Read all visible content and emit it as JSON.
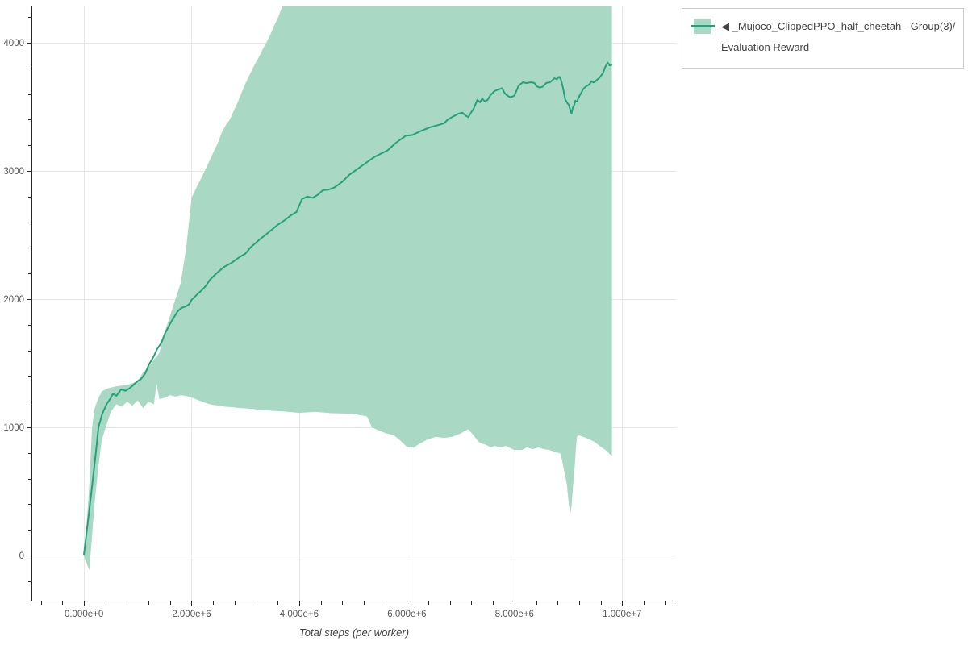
{
  "colors": {
    "line": "#26a17c",
    "band_fill": "#a9d9c5",
    "grid": "#e6e6e6",
    "axis_line": "#262626",
    "tick_label": "#555555",
    "axis_title": "#444444",
    "legend_border": "#cccccc",
    "background": "#ffffff"
  },
  "legend": {
    "position": "top-right",
    "items": [
      {
        "label": "◀ _Mujoco_ClippedPPO_half_cheetah - Group(3)/Evaluation Reward",
        "line_color": "#26a17c",
        "fill_color": "#a9d9c5"
      }
    ]
  },
  "chart_data": {
    "type": "line",
    "title": "",
    "xlabel": "Total steps (per worker)",
    "ylabel": "",
    "grid": true,
    "legend_position": "top-right",
    "x_axis": {
      "lim": [
        -960000,
        11000000
      ],
      "major_ticks": [
        0,
        2000000,
        4000000,
        6000000,
        8000000,
        10000000
      ],
      "tick_labels": [
        "0.000e+0",
        "2.000e+6",
        "4.000e+6",
        "6.000e+6",
        "8.000e+6",
        "1.000e+7"
      ],
      "minor_step": 400000
    },
    "y_axis": {
      "lim": [
        -352,
        4283
      ],
      "major_ticks": [
        0,
        1000,
        2000,
        3000,
        4000
      ],
      "tick_labels": [
        "0",
        "1000",
        "2000",
        "3000",
        "4000"
      ],
      "minor_step": 200
    },
    "series": [
      {
        "name": "Evaluation Reward (mean)",
        "kind": "line",
        "color": "#26a17c",
        "x": [
          0,
          70000,
          140000,
          210000,
          270000,
          340000,
          420000,
          500000,
          540000,
          600000,
          690000,
          770000,
          840000,
          910000,
          990000,
          1060000,
          1140000,
          1210000,
          1290000,
          1360000,
          1440000,
          1510000,
          1590000,
          1660000,
          1740000,
          1810000,
          1890000,
          1960000,
          2000000,
          2040000,
          2110000,
          2190000,
          2260000,
          2340000,
          2410000,
          2500000,
          2600000,
          2750000,
          2900000,
          3000000,
          3100000,
          3250000,
          3400000,
          3500000,
          3600000,
          3730000,
          3850000,
          3950000,
          4050000,
          4150000,
          4250000,
          4350000,
          4440000,
          4550000,
          4650000,
          4800000,
          4930000,
          5100000,
          5230000,
          5400000,
          5640000,
          5800000,
          5980000,
          6100000,
          6250000,
          6430000,
          6600000,
          6690000,
          6760000,
          6840000,
          6950000,
          7030000,
          7100000,
          7140000,
          7200000,
          7240000,
          7310000,
          7360000,
          7400000,
          7450000,
          7500000,
          7550000,
          7630000,
          7700000,
          7770000,
          7820000,
          7860000,
          7920000,
          7960000,
          8000000,
          8070000,
          8120000,
          8160000,
          8220000,
          8300000,
          8370000,
          8410000,
          8470000,
          8520000,
          8590000,
          8660000,
          8700000,
          8740000,
          8790000,
          8830000,
          8860000,
          8900000,
          8940000,
          8980000,
          9010000,
          9040000,
          9060000,
          9080000,
          9110000,
          9130000,
          9160000,
          9200000,
          9240000,
          9280000,
          9330000,
          9390000,
          9430000,
          9460000,
          9490000,
          9530000,
          9570000,
          9610000,
          9640000,
          9680000,
          9730000,
          9770000,
          9800000
        ],
        "y": [
          10,
          250,
          500,
          760,
          1000,
          1105,
          1180,
          1230,
          1264,
          1245,
          1296,
          1285,
          1302,
          1327,
          1358,
          1377,
          1421,
          1491,
          1547,
          1610,
          1660,
          1736,
          1799,
          1849,
          1905,
          1931,
          1943,
          1962,
          1995,
          2010,
          2040,
          2070,
          2100,
          2150,
          2180,
          2215,
          2250,
          2285,
          2330,
          2355,
          2405,
          2460,
          2510,
          2545,
          2580,
          2615,
          2655,
          2680,
          2780,
          2800,
          2790,
          2815,
          2850,
          2855,
          2870,
          2915,
          2970,
          3020,
          3060,
          3110,
          3160,
          3220,
          3275,
          3280,
          3310,
          3340,
          3360,
          3372,
          3400,
          3420,
          3445,
          3455,
          3430,
          3420,
          3460,
          3485,
          3555,
          3535,
          3565,
          3542,
          3555,
          3590,
          3623,
          3635,
          3645,
          3605,
          3590,
          3575,
          3580,
          3588,
          3660,
          3680,
          3692,
          3685,
          3692,
          3686,
          3660,
          3650,
          3656,
          3686,
          3692,
          3705,
          3723,
          3715,
          3736,
          3715,
          3650,
          3560,
          3530,
          3515,
          3470,
          3448,
          3490,
          3515,
          3548,
          3540,
          3580,
          3610,
          3640,
          3660,
          3675,
          3700,
          3690,
          3694,
          3710,
          3723,
          3745,
          3760,
          3805,
          3845,
          3822,
          3826
        ]
      },
      {
        "name": "Evaluation Reward (min/max band)",
        "kind": "band",
        "fill": "#a9d9c5",
        "x": [
          0,
          50000,
          100000,
          150000,
          200000,
          270000,
          330000,
          420000,
          500000,
          600000,
          700000,
          800000,
          900000,
          1000000,
          1100000,
          1200000,
          1300000,
          1350000,
          1400000,
          1500000,
          1600000,
          1700000,
          1800000,
          1900000,
          2000000,
          2100000,
          2200000,
          2300000,
          2400000,
          2500000,
          2560000,
          2640000,
          2710000,
          2860000,
          2940000,
          3010000,
          3090000,
          3160000,
          3240000,
          3310000,
          3390000,
          3460000,
          3540000,
          3610000,
          3700000,
          4000000,
          4300000,
          4600000,
          5000000,
          5260000,
          5350000,
          5500000,
          5640000,
          5760000,
          5890000,
          6010000,
          6130000,
          6240000,
          6390000,
          6540000,
          6690000,
          6840000,
          6990000,
          7140000,
          7240000,
          7330000,
          7390000,
          7480000,
          7560000,
          7630000,
          7740000,
          7840000,
          7990000,
          8140000,
          8230000,
          8340000,
          8440000,
          8540000,
          8640000,
          8740000,
          8830000,
          8860000,
          8910000,
          8970000,
          9010000,
          9040000,
          9060000,
          9090000,
          9120000,
          9140000,
          9160000,
          9190000,
          9280000,
          9390000,
          9490000,
          9580000,
          9690000,
          9790000,
          9810000
        ],
        "upper": [
          30,
          250,
          550,
          1000,
          1150,
          1230,
          1280,
          1300,
          1310,
          1320,
          1325,
          1330,
          1345,
          1360,
          1430,
          1470,
          1530,
          1550,
          1580,
          1740,
          1870,
          2000,
          2130,
          2400,
          2790,
          2880,
          2960,
          3050,
          3140,
          3230,
          3300,
          3360,
          3400,
          3540,
          3620,
          3690,
          3760,
          3820,
          3880,
          3940,
          4000,
          4060,
          4140,
          4200,
          4300,
          4400,
          4400,
          4400,
          4400,
          4400,
          4400,
          4400,
          4400,
          4400,
          4400,
          4400,
          4400,
          4400,
          4400,
          4400,
          4400,
          4400,
          4400,
          4400,
          4400,
          4400,
          4400,
          4400,
          4400,
          4400,
          4400,
          4400,
          4400,
          4400,
          4400,
          4400,
          4400,
          4400,
          4400,
          4400,
          4400,
          4400,
          4400,
          4400,
          4400,
          4400,
          4400,
          4400,
          4400,
          4400,
          4400,
          4400,
          4400,
          4400,
          4400,
          4400,
          4400,
          4400,
          4400
        ],
        "lower": [
          -10,
          -60,
          -113,
          150,
          420,
          700,
          900,
          1020,
          1120,
          1180,
          1160,
          1200,
          1170,
          1210,
          1150,
          1200,
          1180,
          1340,
          1220,
          1230,
          1250,
          1240,
          1250,
          1245,
          1233,
          1215,
          1200,
          1185,
          1175,
          1170,
          1165,
          1160,
          1158,
          1152,
          1150,
          1148,
          1145,
          1142,
          1138,
          1135,
          1132,
          1130,
          1128,
          1126,
          1124,
          1113,
          1120,
          1110,
          1105,
          1085,
          1000,
          970,
          950,
          937,
          893,
          843,
          843,
          874,
          906,
          925,
          918,
          925,
          950,
          985,
          937,
          887,
          874,
          862,
          843,
          855,
          843,
          855,
          824,
          824,
          843,
          830,
          843,
          830,
          824,
          811,
          799,
          792,
          686,
          560,
          400,
          330,
          390,
          560,
          704,
          830,
          925,
          937,
          925,
          906,
          887,
          855,
          824,
          782,
          780
        ]
      }
    ]
  }
}
